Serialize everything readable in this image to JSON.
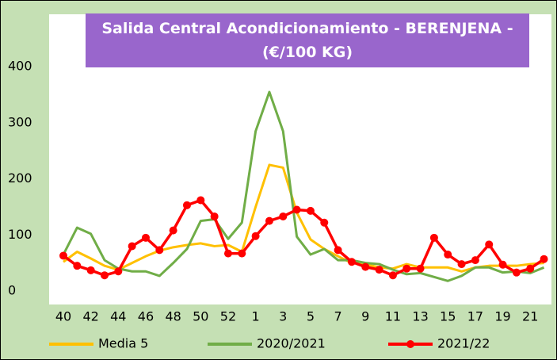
{
  "chart_data": {
    "type": "line",
    "title": "Salida Central Acondicionamiento - BERENJENA - (€/100 KG)",
    "categories": [
      "40",
      null,
      "42",
      null,
      "44",
      null,
      "46",
      null,
      "48",
      null,
      "50",
      null,
      "52",
      null,
      "1",
      null,
      "3",
      null,
      "5",
      null,
      "7",
      null,
      "9",
      null,
      "11",
      null,
      "13",
      null,
      "15",
      null,
      "17",
      null,
      "19",
      null,
      "21",
      null
    ],
    "series": [
      {
        "name": "Media 5",
        "color": "#ffc000",
        "values": [
          52,
          70,
          58,
          45,
          38,
          50,
          62,
          72,
          78,
          82,
          85,
          80,
          82,
          70,
          150,
          225,
          220,
          140,
          92,
          75,
          62,
          50,
          48,
          42,
          40,
          48,
          42,
          42,
          42,
          35,
          42,
          45,
          45,
          45,
          48,
          50
        ]
      },
      {
        "name": "2020/2021",
        "color": "#70ad47",
        "values": [
          65,
          113,
          102,
          55,
          40,
          35,
          35,
          27,
          50,
          75,
          125,
          128,
          93,
          122,
          285,
          355,
          285,
          97,
          65,
          75,
          55,
          55,
          50,
          48,
          38,
          30,
          32,
          25,
          18,
          27,
          42,
          42,
          33,
          35,
          32,
          42
        ]
      },
      {
        "name": "2021/22",
        "color": "#ff0000",
        "marker": true,
        "values": [
          63,
          45,
          37,
          28,
          35,
          80,
          95,
          73,
          108,
          153,
          162,
          133,
          67,
          67,
          98,
          125,
          133,
          145,
          143,
          122,
          73,
          52,
          43,
          38,
          28,
          40,
          40,
          95,
          65,
          48,
          55,
          83,
          47,
          33,
          40,
          57
        ]
      }
    ],
    "ylim": [
      0,
      450
    ],
    "yticks": [
      0,
      100,
      200,
      300,
      400
    ],
    "grid": false,
    "legend": "bottom"
  }
}
